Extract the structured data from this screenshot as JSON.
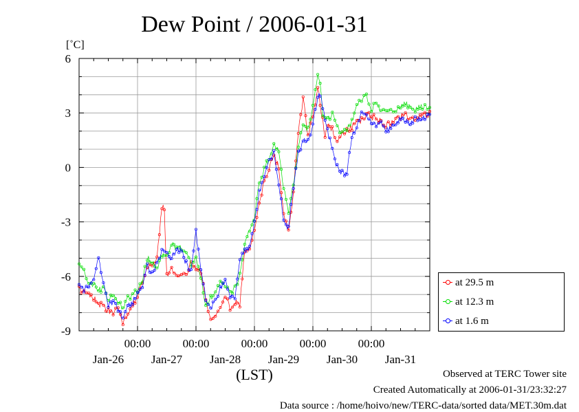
{
  "chart_data": {
    "type": "line",
    "title": "Dew Point / 2006-01-31",
    "ylabel": "[˚C]",
    "xlabel": "(LST)",
    "ylim": [
      -9,
      6
    ],
    "yticks": [
      -9,
      -6,
      -3,
      0,
      3,
      6
    ],
    "x_range_hours": [
      0,
      144
    ],
    "x_tick_labels": [
      "00:00",
      "00:00",
      "00:00",
      "00:00",
      "00:00"
    ],
    "x_tick_hours": [
      24,
      48,
      72,
      96,
      120
    ],
    "day_labels": [
      "Jan-26",
      "Jan-27",
      "Jan-28",
      "Jan-29",
      "Jan-30",
      "Jan-31"
    ],
    "day_label_hours": [
      12,
      36,
      60,
      84,
      108,
      132
    ],
    "grid": true,
    "legend_position": "bottom-right",
    "series": [
      {
        "name": "at 29.5 m",
        "color": "#ff0000",
        "x": [
          0,
          4,
          8,
          12,
          14,
          16,
          18,
          20,
          22,
          24,
          26,
          28,
          30,
          32,
          34,
          34.5,
          35,
          36,
          38,
          40,
          42,
          44,
          46,
          48,
          50,
          52,
          54,
          56,
          58,
          60,
          62,
          64,
          66,
          68,
          70,
          72,
          74,
          76,
          78,
          80,
          82,
          84,
          86,
          88,
          90,
          92,
          94,
          96,
          97,
          98,
          100,
          101,
          102,
          104,
          105,
          106,
          108,
          110,
          112,
          114,
          116,
          118,
          119,
          120,
          122,
          124,
          126,
          128,
          130,
          132,
          134,
          136,
          138,
          140,
          142,
          144
        ],
        "y": [
          -6.7,
          -6.9,
          -7.5,
          -7.9,
          -8.1,
          -7.7,
          -8.6,
          -8.1,
          -7.6,
          -7.1,
          -6.2,
          -5.5,
          -5.5,
          -4.9,
          -2.3,
          -2.0,
          -2.5,
          -6.0,
          -5.6,
          -6.1,
          -5.8,
          -6.0,
          -5.2,
          -5.5,
          -5.7,
          -7.3,
          -8.5,
          -8.1,
          -7.6,
          -7.0,
          -7.7,
          -7.4,
          -7.6,
          -4.6,
          -4.5,
          -3.3,
          -2.0,
          -0.8,
          0.0,
          0.7,
          0.0,
          -2.5,
          -3.4,
          -1.5,
          2.0,
          3.8,
          1.7,
          2.9,
          3.6,
          4.4,
          2.6,
          1.8,
          2.4,
          2.1,
          1.7,
          1.4,
          1.8,
          2.1,
          2.2,
          2.6,
          2.6,
          2.8,
          3.1,
          2.7,
          2.8,
          2.5,
          2.3,
          2.4,
          2.6,
          2.8,
          2.9,
          2.6,
          2.7,
          2.8,
          2.9,
          3.0
        ]
      },
      {
        "name": "at 12.3 m",
        "color": "#00dd00",
        "x": [
          0,
          2,
          4,
          6,
          8,
          10,
          12,
          14,
          16,
          18,
          20,
          22,
          24,
          26,
          28,
          30,
          32,
          34,
          36,
          38,
          40,
          42,
          44,
          46,
          48,
          50,
          52,
          54,
          56,
          58,
          60,
          62,
          64,
          66,
          68,
          70,
          72,
          74,
          76,
          78,
          80,
          82,
          84,
          86,
          88,
          90,
          92,
          94,
          96,
          97,
          98,
          99,
          100,
          102,
          104,
          106,
          108,
          110,
          112,
          114,
          116,
          118,
          120,
          122,
          124,
          126,
          128,
          130,
          132,
          134,
          136,
          138,
          140,
          142,
          144
        ],
        "y": [
          -5.4,
          -5.6,
          -6.5,
          -6.4,
          -6.8,
          -6.6,
          -7.3,
          -7.0,
          -7.4,
          -7.8,
          -7.2,
          -7.0,
          -6.8,
          -6.2,
          -5.0,
          -5.3,
          -5.5,
          -4.8,
          -5.0,
          -4.2,
          -4.5,
          -4.4,
          -4.8,
          -5.3,
          -5.1,
          -6.1,
          -7.6,
          -7.2,
          -6.8,
          -6.3,
          -6.5,
          -7.0,
          -6.6,
          -6.0,
          -4.2,
          -3.5,
          -2.8,
          -0.8,
          -0.1,
          0.5,
          1.3,
          0.8,
          -1.2,
          -2.4,
          -1.0,
          1.2,
          2.3,
          2.1,
          3.3,
          4.3,
          5.2,
          4.6,
          3.0,
          2.6,
          2.9,
          2.2,
          1.9,
          2.0,
          2.6,
          3.3,
          3.8,
          3.9,
          3.2,
          3.5,
          3.1,
          3.1,
          3.3,
          3.1,
          3.3,
          3.6,
          3.3,
          3.1,
          3.4,
          3.3,
          3.4
        ]
      },
      {
        "name": "at 1.6 m",
        "color": "#0000ff",
        "x": [
          0,
          2,
          4,
          6,
          8,
          10,
          12,
          14,
          16,
          18,
          20,
          22,
          24,
          26,
          28,
          30,
          32,
          34,
          36,
          38,
          40,
          42,
          44,
          46,
          48,
          50,
          52,
          54,
          56,
          58,
          60,
          62,
          64,
          66,
          68,
          70,
          72,
          74,
          76,
          78,
          80,
          82,
          84,
          86,
          88,
          90,
          92,
          94,
          96,
          98,
          99,
          100,
          102,
          104,
          106,
          108,
          110,
          112,
          114,
          116,
          118,
          120,
          122,
          124,
          126,
          128,
          130,
          132,
          134,
          136,
          138,
          140,
          142,
          144
        ],
        "y": [
          -6.3,
          -6.8,
          -6.6,
          -6.2,
          -5.0,
          -6.5,
          -7.6,
          -7.4,
          -7.9,
          -8.3,
          -7.6,
          -7.4,
          -7.0,
          -6.5,
          -5.4,
          -5.8,
          -5.2,
          -4.6,
          -4.8,
          -5.0,
          -4.5,
          -4.6,
          -5.3,
          -5.8,
          -3.5,
          -5.6,
          -7.2,
          -7.8,
          -7.3,
          -6.7,
          -6.3,
          -7.1,
          -7.3,
          -5.0,
          -4.6,
          -4.4,
          -3.1,
          -1.4,
          -0.4,
          0.3,
          0.8,
          -0.8,
          -3.0,
          -3.3,
          -1.1,
          0.8,
          1.4,
          1.5,
          2.4,
          3.7,
          4.1,
          3.3,
          2.0,
          0.9,
          0.0,
          -0.3,
          -0.3,
          1.7,
          2.2,
          3.2,
          2.8,
          2.4,
          2.3,
          2.5,
          2.0,
          2.2,
          2.5,
          2.7,
          2.6,
          2.4,
          2.7,
          2.6,
          2.8,
          2.9
        ]
      }
    ]
  },
  "footer": {
    "line1": "Observed at TERC Tower site",
    "line2": "Created Automatically at 2006-01-31/23:32:27",
    "line3": "Data source : /home/hoivo/new/TERC-data/sorted  data/MET.30m.dat"
  }
}
